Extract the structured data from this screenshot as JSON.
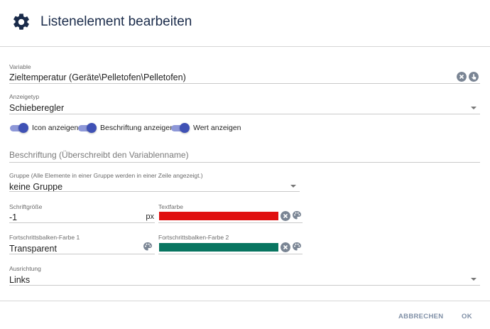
{
  "dialog": {
    "title": "Listenelement bearbeiten"
  },
  "variable": {
    "label": "Variable",
    "value": "Zieltemperatur (Geräte\\Pelletofen\\Pelletofen)"
  },
  "display_type": {
    "label": "Anzeigetyp",
    "value": "Schieberegler"
  },
  "toggles": [
    {
      "label": "Icon anzeigen",
      "on": true
    },
    {
      "label": "Beschriftung anzeigen",
      "on": true
    },
    {
      "label": "Wert anzeigen",
      "on": true
    }
  ],
  "caption": {
    "placeholder": "Beschriftung (Überschreibt den Variablenname)"
  },
  "group": {
    "label": "Gruppe (Alle Elemente in einer Gruppe werden in einer Zeile angezeigt.)",
    "value": "keine Gruppe"
  },
  "font_size": {
    "label": "Schriftgröße",
    "value": "-1",
    "unit": "px"
  },
  "text_color": {
    "label": "Textfarbe",
    "color": "#e01010"
  },
  "progress_color_1": {
    "label": "Fortschrittsbalken-Farbe 1",
    "value": "Transparent"
  },
  "progress_color_2": {
    "label": "Fortschrittsbalken-Farbe 2",
    "color": "#087560"
  },
  "alignment": {
    "label": "Ausrichtung",
    "value": "Links"
  },
  "actions": {
    "cancel": "ABBRECHEN",
    "ok": "OK"
  },
  "colors": {
    "accent": "#3f51b5",
    "header_text": "#1a2b4a",
    "icon_gray": "#7a8594"
  }
}
